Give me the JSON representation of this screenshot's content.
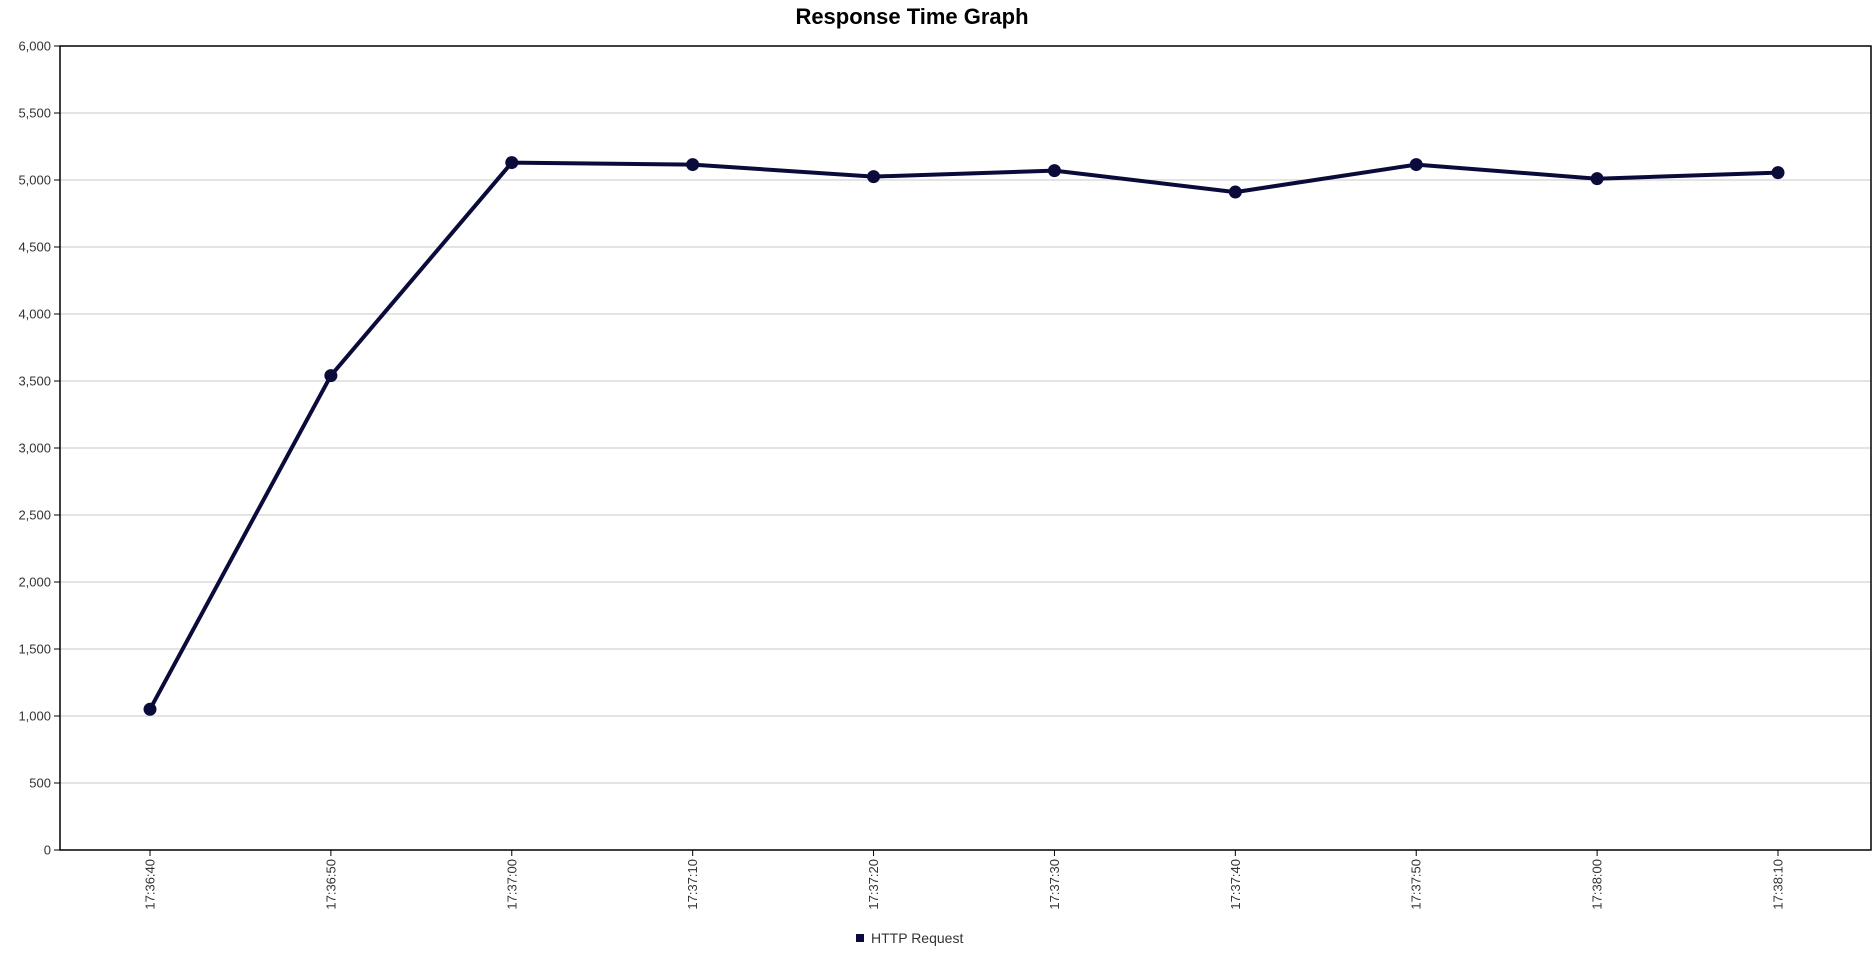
{
  "chart_data": {
    "type": "line",
    "title": "Response Time Graph",
    "xlabel": "",
    "ylabel": "",
    "ylim": [
      0,
      6000
    ],
    "yticks": [
      0,
      500,
      1000,
      1500,
      2000,
      2500,
      3000,
      3500,
      4000,
      4500,
      5000,
      5500,
      6000
    ],
    "ytick_labels": [
      "0",
      "500",
      "1,000",
      "1,500",
      "2,000",
      "2,500",
      "3,000",
      "3,500",
      "4,000",
      "4,500",
      "5,000",
      "5,500",
      "6,000"
    ],
    "categories": [
      "17:36:40",
      "17:36:50",
      "17:37:00",
      "17:37:10",
      "17:37:20",
      "17:37:30",
      "17:37:40",
      "17:37:50",
      "17:38:00",
      "17:38:10"
    ],
    "series": [
      {
        "name": "HTTP Request",
        "color": "#0b0b3b",
        "values": [
          1050,
          3540,
          5130,
          5115,
          5025,
          5070,
          4910,
          5115,
          5010,
          5055
        ]
      }
    ],
    "grid": true,
    "legend_position": "bottom-center"
  }
}
